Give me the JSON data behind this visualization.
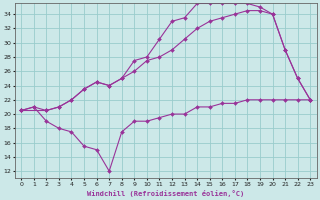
{
  "xlabel": "Windchill (Refroidissement éolien,°C)",
  "bg_color": "#cce8e8",
  "grid_color": "#99cccc",
  "line_color": "#993399",
  "xlim": [
    -0.5,
    23.5
  ],
  "ylim": [
    11,
    35.5
  ],
  "xticks": [
    0,
    1,
    2,
    3,
    4,
    5,
    6,
    7,
    8,
    9,
    10,
    11,
    12,
    13,
    14,
    15,
    16,
    17,
    18,
    19,
    20,
    21,
    22,
    23
  ],
  "yticks": [
    12,
    14,
    16,
    18,
    20,
    22,
    24,
    26,
    28,
    30,
    32,
    34
  ],
  "line1_x": [
    0,
    1,
    2,
    3,
    4,
    5,
    6,
    7,
    8,
    9,
    10,
    11,
    12,
    13,
    14,
    15,
    16,
    17,
    18,
    19,
    20,
    21,
    22,
    23
  ],
  "line1_y": [
    20.5,
    21,
    19,
    18,
    17.5,
    15.5,
    15,
    12,
    17.5,
    19,
    19,
    19.5,
    20,
    20,
    21,
    21,
    21.5,
    21.5,
    22,
    22,
    22,
    22,
    22,
    22
  ],
  "line2_x": [
    0,
    1,
    2,
    3,
    4,
    5,
    6,
    7,
    8,
    9,
    10,
    11,
    12,
    13,
    14,
    15,
    16,
    17,
    18,
    19,
    20,
    21,
    22,
    23
  ],
  "line2_y": [
    20.5,
    21,
    20.5,
    21,
    22,
    23.5,
    24.5,
    24,
    25,
    27.5,
    28,
    30.5,
    33,
    33.5,
    35.5,
    35.5,
    35.5,
    35.5,
    35.5,
    35,
    34,
    29,
    25,
    22
  ],
  "line3_x": [
    0,
    2,
    3,
    4,
    5,
    6,
    7,
    8,
    9,
    10,
    11,
    12,
    13,
    14,
    15,
    16,
    17,
    18,
    19,
    20,
    21,
    22,
    23
  ],
  "line3_y": [
    20.5,
    20.5,
    21,
    22,
    23.5,
    24.5,
    24,
    25,
    26,
    27.5,
    28,
    29,
    30.5,
    32,
    33,
    33.5,
    34,
    34.5,
    34.5,
    34,
    29,
    25,
    22
  ]
}
